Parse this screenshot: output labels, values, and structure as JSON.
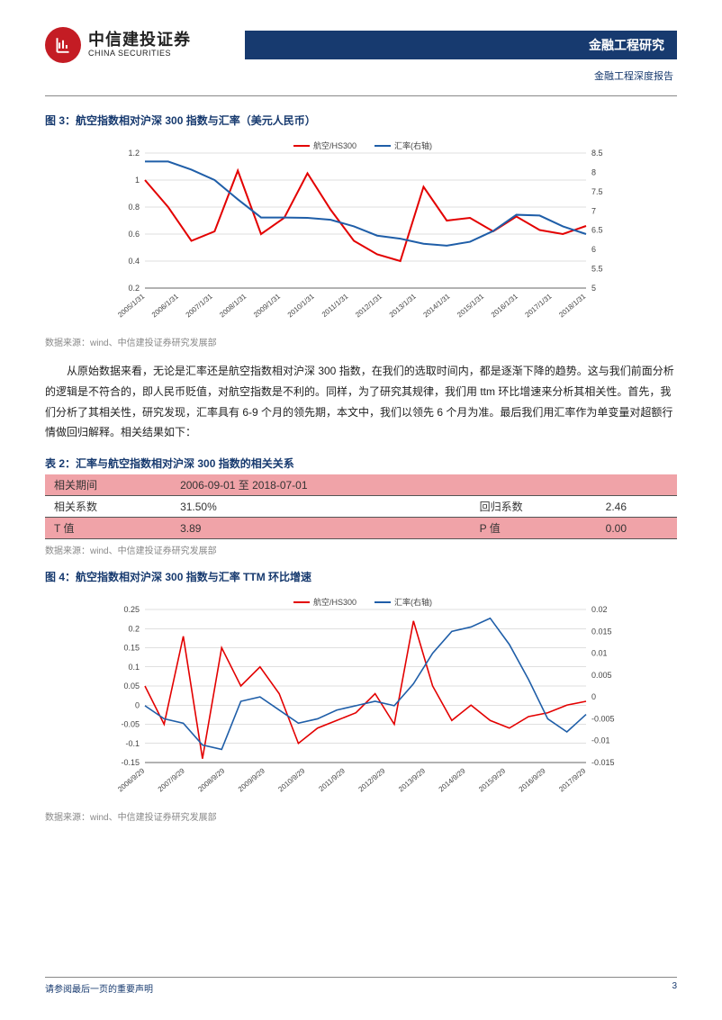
{
  "header": {
    "logo_cn": "中信建投证券",
    "logo_en": "CHINA SECURITIES",
    "title_right": "金融工程研究",
    "subtitle": "金融工程深度报告"
  },
  "fig3": {
    "title": "图 3：航空指数相对沪深 300 指数与汇率（美元人民币）",
    "type": "line",
    "legend": [
      "航空/HS300",
      "汇率(右轴)"
    ],
    "legend_colors": [
      "#e30000",
      "#1f5ea8"
    ],
    "x_labels": [
      "2005/1/31",
      "2006/1/31",
      "2007/1/31",
      "2008/1/31",
      "2009/1/31",
      "2010/1/31",
      "2011/1/31",
      "2012/1/31",
      "2013/1/31",
      "2014/1/31",
      "2015/1/31",
      "2016/1/31",
      "2017/1/31",
      "2018/1/31"
    ],
    "left_axis": {
      "min": 0.2,
      "max": 1.2,
      "step": 0.2
    },
    "right_axis": {
      "min": 5.0,
      "max": 8.5,
      "step": 0.5
    },
    "series_red": [
      1.0,
      0.8,
      0.55,
      0.62,
      1.07,
      0.6,
      0.72,
      1.05,
      0.78,
      0.55,
      0.45,
      0.4,
      0.95,
      0.7,
      0.72,
      0.62,
      0.73,
      0.63,
      0.6,
      0.66
    ],
    "series_blue": [
      8.28,
      8.28,
      8.07,
      7.8,
      7.3,
      6.83,
      6.83,
      6.82,
      6.77,
      6.6,
      6.36,
      6.28,
      6.15,
      6.1,
      6.2,
      6.48,
      6.9,
      6.88,
      6.6,
      6.4
    ],
    "background_color": "#ffffff",
    "grid_color": "#bfbfbf",
    "line_width": 2,
    "aspect": "560x200"
  },
  "source3": "数据来源：wind、中信建投证券研究发展部",
  "paragraph": "从原始数据来看，无论是汇率还是航空指数相对沪深 300 指数，在我们的选取时间内，都是逐渐下降的趋势。这与我们前面分析的逻辑是不符合的，即人民币贬值，对航空指数是不利的。同样，为了研究其规律，我们用 ttm 环比增速来分析其相关性。首先，我们分析了其相关性，研究发现，汇率具有 6-9 个月的领先期，本文中，我们以领先 6 个月为准。最后我们用汇率作为单变量对超额行情做回归解释。相关结果如下：",
  "table2": {
    "title": "表 2：汇率与航空指数相对沪深 300 指数的相关关系",
    "rows": [
      {
        "pink": true,
        "c1": "相关期间",
        "c2": "2006-09-01 至 2018-07-01",
        "c3": "",
        "c4": ""
      },
      {
        "pink": false,
        "c1": "相关系数",
        "c2": "31.50%",
        "c3": "回归系数",
        "c4": "2.46"
      },
      {
        "pink": true,
        "c1": "T 值",
        "c2": "3.89",
        "c3": "P 值",
        "c4": "0.00"
      }
    ]
  },
  "source_t2": "数据来源：wind、中信建投证券研究发展部",
  "fig4": {
    "title": "图 4：航空指数相对沪深 300 指数与汇率 TTM 环比增速",
    "type": "line",
    "legend": [
      "航空/HS300",
      "汇率(右轴)"
    ],
    "legend_colors": [
      "#e30000",
      "#1f5ea8"
    ],
    "x_labels": [
      "2006/9/29",
      "2007/9/29",
      "2008/9/29",
      "2009/9/29",
      "2010/9/29",
      "2011/9/29",
      "2012/9/29",
      "2013/9/29",
      "2014/9/29",
      "2015/9/29",
      "2016/9/29",
      "2017/9/29"
    ],
    "left_axis": {
      "min": -0.15,
      "max": 0.25,
      "step": 0.05
    },
    "right_axis": {
      "min": -0.015,
      "max": 0.02,
      "step": 0.005
    },
    "series_red": [
      0.05,
      -0.05,
      0.18,
      -0.14,
      0.15,
      0.05,
      0.1,
      0.03,
      -0.1,
      -0.06,
      -0.04,
      -0.02,
      0.03,
      -0.05,
      0.22,
      0.05,
      -0.04,
      0.0,
      -0.04,
      -0.06,
      -0.03,
      -0.02,
      0.0,
      0.01
    ],
    "series_blue": [
      -0.002,
      -0.005,
      -0.006,
      -0.011,
      -0.012,
      -0.001,
      0.0,
      -0.003,
      -0.006,
      -0.005,
      -0.003,
      -0.002,
      -0.001,
      -0.002,
      0.003,
      0.01,
      0.015,
      0.016,
      0.018,
      0.012,
      0.004,
      -0.005,
      -0.008,
      -0.004
    ],
    "background_color": "#ffffff",
    "grid_color": "#bfbfbf",
    "line_width": 1.6,
    "aspect": "560x220"
  },
  "source4": "数据来源：wind、中信建投证券研究发展部",
  "footer": {
    "note": "请参阅最后一页的重要声明",
    "page": "3"
  }
}
